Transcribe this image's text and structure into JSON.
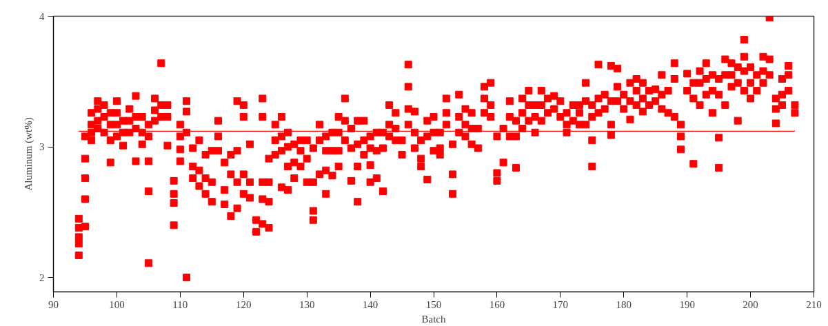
{
  "chart_data": {
    "type": "scatter",
    "xlabel": "Batch",
    "ylabel": "Aluminum (wt%)",
    "xlim": [
      90,
      210
    ],
    "ylim": [
      1.89,
      4
    ],
    "xticks": [
      90,
      100,
      110,
      120,
      130,
      140,
      150,
      160,
      170,
      180,
      190,
      200,
      210
    ],
    "yticks": [
      2,
      3,
      4
    ],
    "grid": false,
    "marker": "square",
    "ref_lines": [
      {
        "axis": "y",
        "value": 3.12,
        "color": "#ff0000"
      }
    ],
    "series": [
      {
        "color": "#ff0000",
        "x": [
          94,
          94,
          94,
          94,
          94,
          95,
          95,
          95,
          95,
          95,
          96,
          96,
          96,
          96,
          97,
          97,
          97,
          97,
          98,
          98,
          98,
          99,
          99,
          99,
          99,
          100,
          100,
          100,
          100,
          101,
          101,
          101,
          102,
          102,
          102,
          103,
          103,
          103,
          103,
          104,
          104,
          104,
          105,
          105,
          105,
          105,
          105,
          106,
          106,
          106,
          107,
          107,
          107,
          108,
          108,
          108,
          109,
          109,
          109,
          109,
          110,
          110,
          110,
          110,
          111,
          111,
          111,
          111,
          112,
          112,
          112,
          113,
          113,
          113,
          114,
          114,
          114,
          115,
          115,
          115,
          116,
          116,
          116,
          117,
          117,
          117,
          118,
          118,
          118,
          119,
          119,
          119,
          119,
          120,
          120,
          120,
          120,
          121,
          121,
          121,
          122,
          122,
          123,
          123,
          123,
          123,
          123,
          124,
          124,
          124,
          124,
          125,
          125,
          125,
          126,
          126,
          126,
          126,
          127,
          127,
          127,
          127,
          128,
          128,
          128,
          129,
          129,
          129,
          130,
          130,
          130,
          131,
          131,
          131,
          131,
          132,
          132,
          132,
          133,
          133,
          133,
          133,
          134,
          134,
          134,
          135,
          135,
          135,
          135,
          136,
          136,
          136,
          137,
          137,
          137,
          138,
          138,
          138,
          138,
          139,
          139,
          139,
          140,
          140,
          140,
          140,
          141,
          141,
          141,
          142,
          142,
          142,
          143,
          143,
          143,
          144,
          144,
          144,
          145,
          145,
          146,
          146,
          146,
          146,
          147,
          147,
          147,
          148,
          148,
          148,
          149,
          149,
          149,
          150,
          150,
          150,
          151,
          151,
          151,
          152,
          152,
          152,
          153,
          153,
          153,
          154,
          154,
          154,
          155,
          155,
          155,
          156,
          156,
          156,
          157,
          157,
          158,
          158,
          158,
          159,
          159,
          159,
          160,
          160,
          160,
          161,
          161,
          162,
          162,
          162,
          163,
          163,
          163,
          164,
          164,
          164,
          165,
          165,
          165,
          166,
          166,
          166,
          167,
          167,
          167,
          168,
          168,
          169,
          169,
          170,
          170,
          171,
          171,
          171,
          172,
          172,
          173,
          173,
          173,
          174,
          174,
          174,
          175,
          175,
          175,
          175,
          176,
          176,
          176,
          177,
          177,
          178,
          178,
          178,
          178,
          179,
          179,
          179,
          180,
          180,
          181,
          181,
          181,
          182,
          182,
          182,
          183,
          183,
          183,
          184,
          184,
          185,
          185,
          186,
          186,
          186,
          187,
          187,
          188,
          188,
          188,
          189,
          189,
          189,
          190,
          190,
          191,
          191,
          191,
          192,
          192,
          192,
          193,
          193,
          193,
          194,
          194,
          194,
          195,
          195,
          195,
          195,
          196,
          196,
          196,
          197,
          197,
          197,
          198,
          198,
          198,
          199,
          199,
          199,
          199,
          200,
          200,
          200,
          201,
          201,
          202,
          202,
          202,
          203,
          203,
          203,
          204,
          204,
          204,
          205,
          205,
          205,
          206,
          206,
          206,
          207,
          207
        ],
        "values": [
          2.45,
          2.38,
          2.31,
          2.26,
          2.17,
          3.08,
          2.91,
          2.76,
          2.6,
          2.39,
          3.26,
          3.17,
          3.11,
          3.05,
          3.35,
          3.29,
          3.2,
          3.14,
          3.32,
          3.23,
          3.11,
          3.26,
          3.17,
          3.05,
          2.88,
          3.35,
          3.26,
          3.17,
          3.08,
          3.2,
          3.11,
          3.01,
          3.29,
          3.2,
          3.11,
          3.39,
          3.23,
          3.14,
          2.89,
          3.23,
          3.11,
          3.02,
          3.17,
          3.08,
          2.89,
          2.66,
          2.11,
          3.37,
          3.28,
          3.2,
          3.64,
          3.32,
          3.23,
          3.32,
          3.23,
          3.01,
          2.74,
          2.64,
          2.57,
          2.4,
          3.17,
          3.08,
          2.98,
          2.89,
          3.35,
          3.27,
          3.11,
          2.0,
          2.99,
          2.85,
          2.76,
          3.05,
          2.82,
          2.7,
          2.94,
          2.76,
          2.64,
          2.97,
          2.73,
          2.58,
          3.2,
          3.08,
          2.97,
          2.88,
          2.67,
          2.56,
          2.94,
          2.79,
          2.47,
          3.35,
          2.97,
          2.73,
          2.53,
          3.32,
          3.23,
          2.79,
          2.64,
          3.02,
          2.73,
          2.61,
          2.44,
          2.35,
          3.37,
          3.23,
          2.73,
          2.6,
          2.41,
          2.91,
          2.73,
          2.58,
          2.38,
          3.17,
          3.05,
          2.94,
          3.23,
          3.08,
          2.97,
          2.69,
          3.11,
          3.0,
          2.85,
          2.67,
          3.02,
          2.88,
          2.76,
          3.05,
          2.97,
          2.85,
          3.05,
          2.91,
          2.73,
          2.99,
          2.73,
          2.51,
          2.44,
          3.17,
          3.05,
          2.79,
          3.08,
          2.97,
          2.82,
          2.64,
          3.11,
          2.97,
          2.78,
          3.23,
          3.11,
          2.97,
          2.85,
          3.37,
          3.2,
          3.05,
          3.14,
          2.99,
          2.74,
          3.2,
          3.02,
          2.85,
          2.58,
          3.2,
          3.05,
          2.94,
          3.08,
          2.99,
          2.86,
          2.73,
          3.11,
          2.97,
          2.76,
          3.11,
          2.99,
          2.66,
          3.32,
          3.17,
          3.08,
          3.26,
          3.14,
          3.05,
          3.05,
          2.94,
          3.63,
          3.46,
          3.29,
          3.17,
          3.27,
          3.11,
          2.99,
          3.05,
          2.91,
          2.85,
          3.2,
          3.08,
          2.75,
          3.23,
          3.11,
          2.97,
          3.11,
          2.99,
          2.94,
          3.37,
          3.26,
          3.17,
          3.02,
          2.79,
          2.64,
          3.4,
          3.23,
          3.11,
          3.29,
          3.17,
          3.08,
          3.26,
          3.14,
          3.02,
          3.14,
          2.99,
          3.46,
          3.37,
          3.26,
          3.49,
          3.32,
          3.23,
          3.08,
          2.8,
          2.74,
          3.14,
          2.88,
          3.35,
          3.23,
          3.08,
          3.2,
          3.08,
          2.84,
          3.37,
          3.26,
          3.14,
          3.43,
          3.32,
          3.2,
          3.32,
          3.23,
          3.11,
          3.43,
          3.32,
          3.2,
          3.37,
          3.26,
          3.39,
          3.29,
          3.35,
          3.23,
          3.26,
          3.17,
          3.11,
          3.32,
          3.2,
          3.32,
          3.26,
          3.17,
          3.49,
          3.35,
          3.17,
          3.32,
          3.23,
          3.05,
          2.85,
          3.63,
          3.37,
          3.26,
          3.4,
          3.29,
          3.62,
          3.35,
          3.17,
          3.09,
          3.6,
          3.46,
          3.35,
          3.4,
          3.29,
          3.49,
          3.35,
          3.21,
          3.52,
          3.43,
          3.32,
          3.49,
          3.37,
          3.27,
          3.43,
          3.32,
          3.44,
          3.35,
          3.55,
          3.4,
          3.29,
          3.43,
          3.26,
          3.64,
          3.52,
          3.23,
          3.17,
          3.08,
          2.98,
          3.56,
          3.43,
          3.49,
          3.37,
          2.87,
          3.58,
          3.49,
          3.32,
          3.64,
          3.52,
          3.4,
          3.55,
          3.43,
          3.26,
          3.52,
          3.4,
          3.07,
          2.84,
          3.67,
          3.55,
          3.32,
          3.64,
          3.55,
          3.46,
          3.61,
          3.49,
          3.2,
          3.82,
          3.69,
          3.58,
          3.43,
          3.61,
          3.49,
          3.37,
          3.55,
          3.43,
          3.69,
          3.58,
          3.49,
          3.99,
          3.67,
          3.55,
          3.37,
          3.29,
          3.18,
          3.52,
          3.4,
          3.32,
          3.62,
          3.55,
          3.43,
          3.32,
          3.26
        ]
      }
    ]
  }
}
